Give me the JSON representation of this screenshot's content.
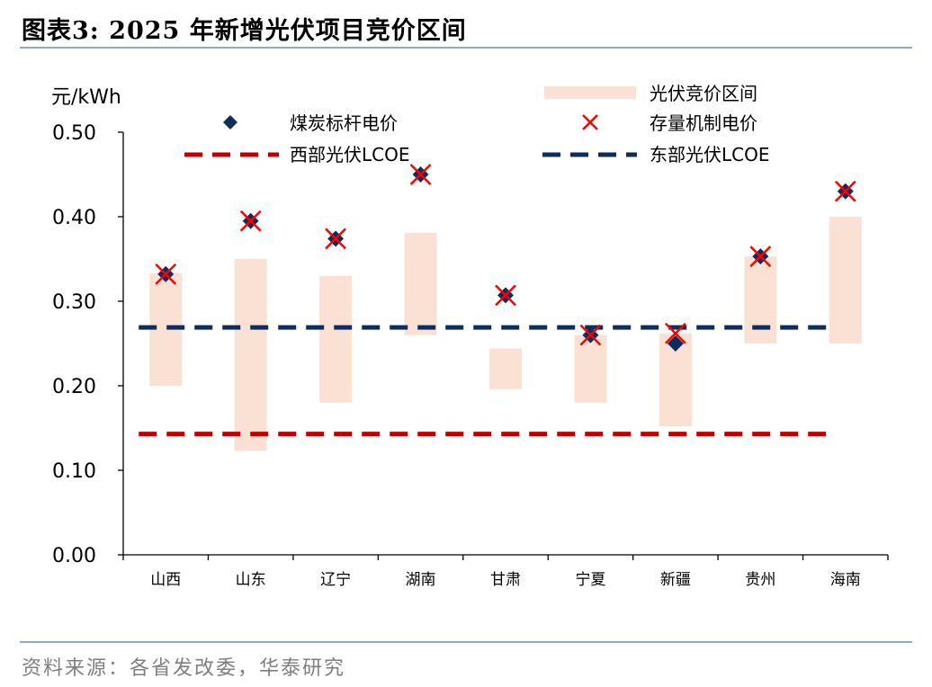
{
  "header": {
    "title": "图表3:  2025 年新增光伏项目竞价区间"
  },
  "footer": {
    "source": "资料来源：各省发改委，华泰研究"
  },
  "colors": {
    "range_fill": "#fbe1d3",
    "benchmark": "#0e2d5c",
    "storage_marker": "#ff0000",
    "west_lcoe": "#c00000",
    "east_lcoe": "#0e2d5c",
    "rule": "#8ea9c1"
  },
  "chart_data": {
    "type": "bar",
    "ylabel": "元/kWh",
    "ylim": [
      0,
      0.5
    ],
    "yticks": [
      "0.00",
      "0.10",
      "0.20",
      "0.30",
      "0.40",
      "0.50"
    ],
    "categories": [
      "山西",
      "山东",
      "辽宁",
      "湖南",
      "甘肃",
      "宁夏",
      "新疆",
      "贵州",
      "海南"
    ],
    "legend": {
      "range": "光伏竞价区间",
      "benchmark": "煤炭标杆电价",
      "storage": "存量机制电价",
      "west": "西部光伏LCOE",
      "east": "东部光伏LCOE"
    },
    "series": [
      {
        "name": "光伏竞价区间",
        "kind": "range",
        "low": [
          0.2,
          0.123,
          0.18,
          0.26,
          0.196,
          0.18,
          0.152,
          0.25,
          0.25
        ],
        "high": [
          0.333,
          0.35,
          0.33,
          0.381,
          0.244,
          0.26,
          0.262,
          0.353,
          0.4
        ]
      },
      {
        "name": "煤炭标杆电价",
        "kind": "diamond",
        "values": [
          0.332,
          0.395,
          0.374,
          0.45,
          0.307,
          0.26,
          0.25,
          0.353,
          0.43
        ]
      },
      {
        "name": "存量机制电价",
        "kind": "cross",
        "values": [
          0.332,
          0.395,
          0.374,
          0.45,
          0.307,
          0.26,
          0.262,
          0.353,
          0.43
        ]
      },
      {
        "name": "西部光伏LCOE",
        "kind": "hline",
        "value": 0.143
      },
      {
        "name": "东部光伏LCOE",
        "kind": "hline",
        "value": 0.269
      }
    ]
  }
}
